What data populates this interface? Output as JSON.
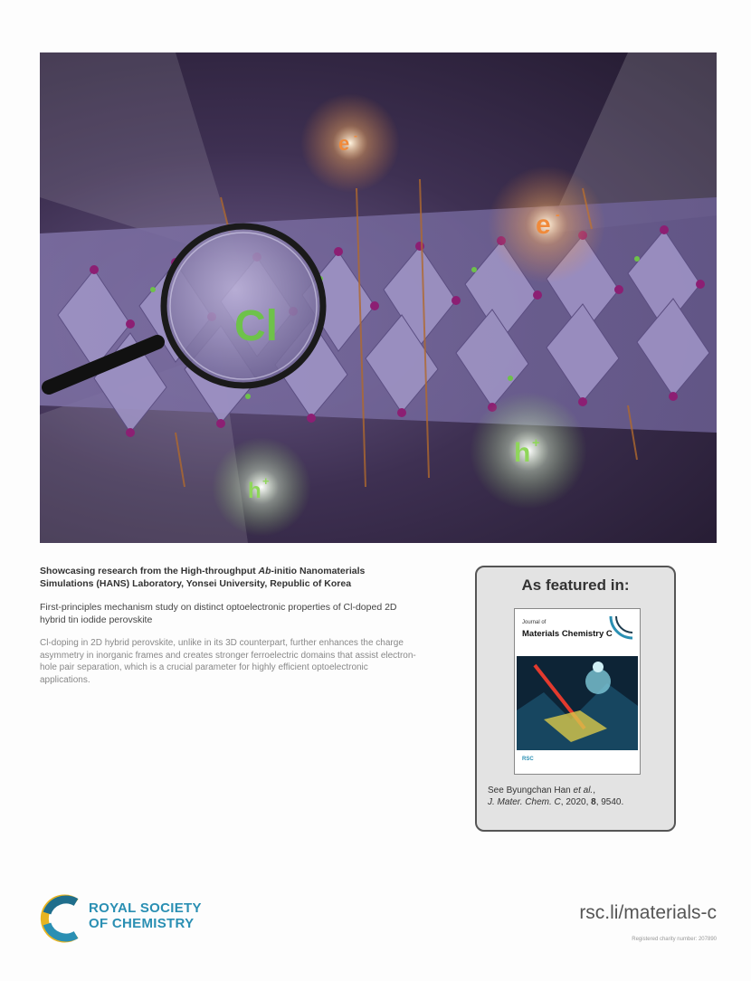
{
  "hero": {
    "labels": {
      "electron_1": "e",
      "electron_2": "e",
      "minus": "-",
      "hole_1": "h",
      "hole_2": "h",
      "plus": "+",
      "dopant": "Cl"
    },
    "colors": {
      "background": "#2e2440",
      "octahedra": "#8a7db0",
      "iodine": "#8c1f73",
      "chlorine": "#6ec24a",
      "electron": "#f08a3a",
      "hole": "#8fd65a"
    }
  },
  "caption": {
    "title_part1": "Showcasing research from the High-throughput ",
    "title_italic": "Ab",
    "title_part2": "-initio Nanomaterials Simulations (HANS) Laboratory, Yonsei University, Republic of Korea",
    "subtitle": "First-principles mechanism study on distinct optoelectronic properties of Cl-doped 2D hybrid tin iodide perovskite",
    "body": "Cl-doping in 2D hybrid perovskite, unlike in its 3D counterpart, further enhances the charge asymmetry in inorganic frames and creates stronger ferroelectric domains that assist electron-hole pair separation, which is a crucial parameter for highly efficient optoelectronic applications."
  },
  "featured": {
    "title": "As featured in:",
    "cover": {
      "label": "Journal of",
      "title": "Materials Chemistry C",
      "footer": "RSC"
    },
    "citation_line1_prefix": "See Byungchan Han ",
    "citation_line1_italic": "et al.",
    "citation_line1_suffix": ",",
    "citation_journal": "J. Mater. Chem. C",
    "citation_year": ", 2020, ",
    "citation_volume": "8",
    "citation_page": ", 9540."
  },
  "footer": {
    "logo_line1": "ROYAL SOCIETY",
    "logo_line2": "OF CHEMISTRY",
    "url": "rsc.li/materials-c",
    "charity": "Registered charity number: 207890"
  }
}
